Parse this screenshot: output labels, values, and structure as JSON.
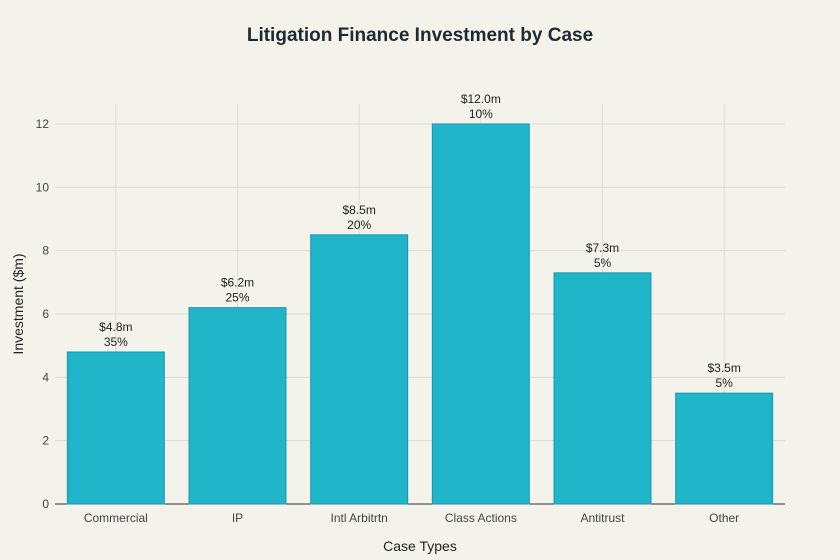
{
  "chart_data": {
    "type": "bar",
    "title": "Litigation Finance Investment by Case",
    "xlabel": "Case Types",
    "ylabel": "Investment ($m)",
    "categories": [
      "Commercial",
      "IP",
      "Intl Arbitrtn",
      "Class Actions",
      "Antitrust",
      "Other"
    ],
    "values": [
      4.8,
      6.2,
      8.5,
      12.0,
      7.3,
      3.5
    ],
    "data_labels": [
      [
        "$4.8m",
        "35%"
      ],
      [
        "$6.2m",
        "25%"
      ],
      [
        "$8.5m",
        "20%"
      ],
      [
        "$12.0m",
        "10%"
      ],
      [
        "$7.3m",
        "5%"
      ],
      [
        "$3.5m",
        "5%"
      ]
    ],
    "yticks": [
      0,
      2,
      4,
      6,
      8,
      10,
      12
    ],
    "ylim": [
      0,
      12.63
    ],
    "grid": true,
    "bar_color": "#21b5c9",
    "bar_edge_color": "#1a98a9"
  }
}
